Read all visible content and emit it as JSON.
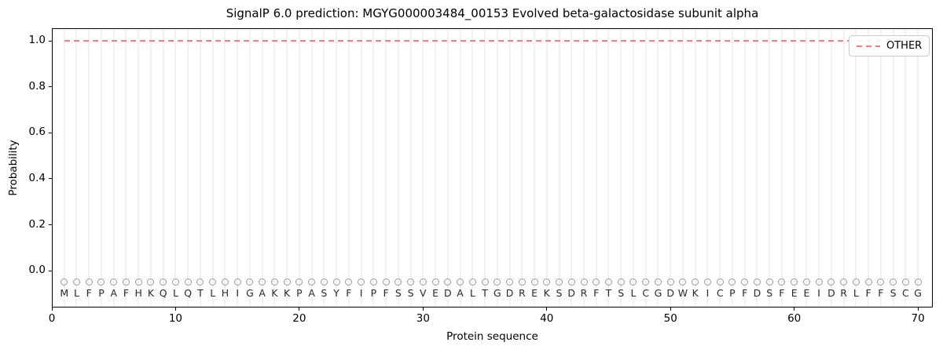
{
  "legend": {
    "position": "upper right",
    "items": [
      {
        "label": "OTHER",
        "linestyle": "dashed",
        "color": "#f08080"
      }
    ]
  },
  "colors": {
    "other_line": "#f08080",
    "grid": "#f2f2f2",
    "marker_outline": "#9a9a9a",
    "letter_text": "#2b2b2b",
    "frame": "#000000"
  },
  "chart_data": {
    "type": "line",
    "title": "SignalP 6.0 prediction: MGYG000003484_00153 Evolved beta-galactosidase subunit alpha",
    "xlabel": "Protein sequence",
    "ylabel": "Probability",
    "xlim": [
      0,
      71.2
    ],
    "ylim": [
      -0.16,
      1.055
    ],
    "xticks": [
      0,
      10,
      20,
      30,
      40,
      50,
      60,
      70
    ],
    "yticks": [
      0.0,
      0.2,
      0.4,
      0.6,
      0.8,
      1.0
    ],
    "grid": "vertical line at every residue position, no horizontal gridlines",
    "legend_position": "upper right",
    "sequence": "MLFPAFHKQLQTLHIGAKKPASYFIPFSSVEDALTGDREKSDRFTSLCGDWKICPFDSFEEIDRLFFSCG",
    "markers": {
      "shape": "circle-outline",
      "color": "#9a9a9a",
      "y": -0.05
    },
    "letters": {
      "y": -0.1
    },
    "series": [
      {
        "name": "OTHER",
        "color": "#f08080",
        "linestyle": "dashed",
        "x_start": 1,
        "x_end": 70,
        "values": [
          1.0,
          1.0,
          1.0,
          1.0,
          1.0,
          1.0,
          1.0,
          1.0,
          1.0,
          1.0,
          1.0,
          1.0,
          1.0,
          1.0,
          1.0,
          1.0,
          1.0,
          1.0,
          1.0,
          1.0,
          1.0,
          1.0,
          1.0,
          1.0,
          1.0,
          1.0,
          1.0,
          1.0,
          1.0,
          1.0,
          1.0,
          1.0,
          1.0,
          1.0,
          1.0,
          1.0,
          1.0,
          1.0,
          1.0,
          1.0,
          1.0,
          1.0,
          1.0,
          1.0,
          1.0,
          1.0,
          1.0,
          1.0,
          1.0,
          1.0,
          1.0,
          1.0,
          1.0,
          1.0,
          1.0,
          1.0,
          1.0,
          1.0,
          1.0,
          1.0,
          1.0,
          1.0,
          1.0,
          1.0,
          1.0,
          1.0,
          1.0,
          1.0,
          1.0,
          1.0
        ]
      }
    ]
  }
}
